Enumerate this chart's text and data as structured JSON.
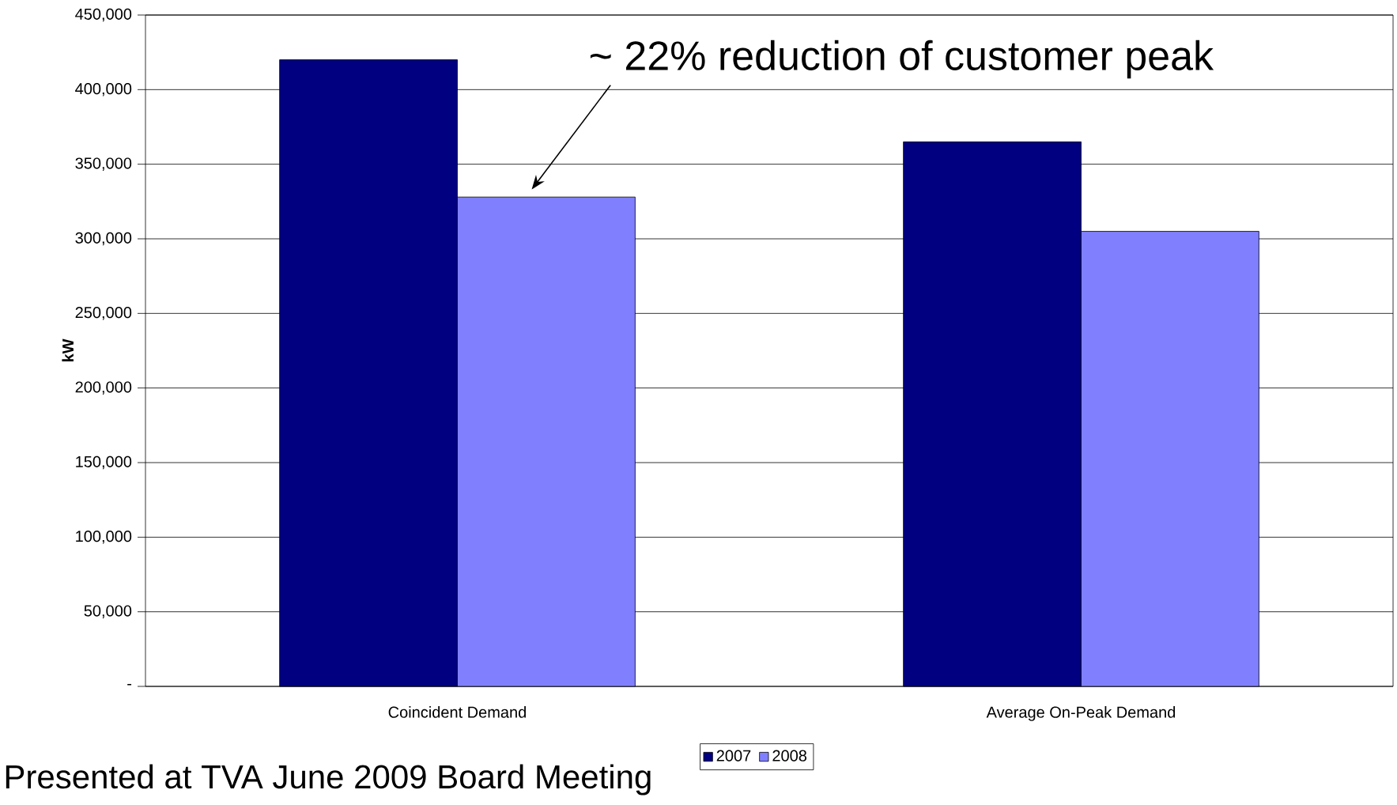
{
  "chart_data": {
    "type": "bar",
    "ylabel": "kW",
    "categories": [
      "Coincident Demand",
      "Average On-Peak Demand"
    ],
    "series": [
      {
        "name": "2007",
        "color": "#000080",
        "values": [
          420000,
          365000
        ]
      },
      {
        "name": "2008",
        "color": "#8080ff",
        "values": [
          328000,
          305000
        ]
      }
    ],
    "ylim": [
      0,
      450000
    ],
    "yticks": [
      {
        "value": 0,
        "label": "-"
      },
      {
        "value": 50000,
        "label": "50,000"
      },
      {
        "value": 100000,
        "label": "100,000"
      },
      {
        "value": 150000,
        "label": "150,000"
      },
      {
        "value": 200000,
        "label": "200,000"
      },
      {
        "value": 250000,
        "label": "250,000"
      },
      {
        "value": 300000,
        "label": "300,000"
      },
      {
        "value": 350000,
        "label": "350,000"
      },
      {
        "value": 400000,
        "label": "400,000"
      },
      {
        "value": 450000,
        "label": "450,000"
      }
    ],
    "grid": "y",
    "legend": "bottom",
    "annotations": [
      "~ 22% reduction of customer peak",
      "Presented at TVA June 2009 Board Meeting"
    ]
  }
}
